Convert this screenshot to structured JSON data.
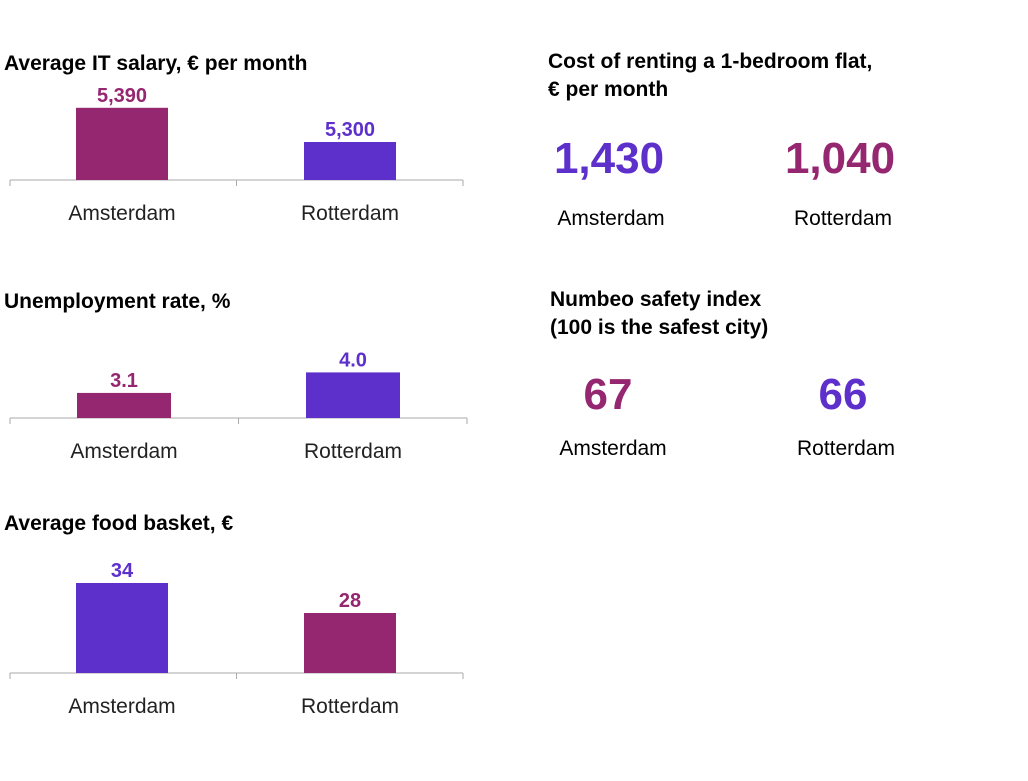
{
  "colors": {
    "magenta": "#952670",
    "violet": "#5d2fcb",
    "axis": "#aaaaaa"
  },
  "chart_data": [
    {
      "type": "bar",
      "title": "Average IT salary, € per month",
      "categories": [
        "Amsterdam",
        "Rotterdam"
      ],
      "values": [
        5390,
        5300
      ],
      "value_labels": [
        "5,390",
        "5,300"
      ],
      "bar_colors": [
        "#952670",
        "#5d2fcb"
      ],
      "ylim": [
        5200,
        5400
      ]
    },
    {
      "type": "bar",
      "title": "Unemployment rate, %",
      "categories": [
        "Amsterdam",
        "Rotterdam"
      ],
      "values": [
        3.1,
        4.0
      ],
      "value_labels": [
        "3.1",
        "4.0"
      ],
      "bar_colors": [
        "#952670",
        "#5d2fcb"
      ],
      "ylim": [
        2.0,
        4.5
      ]
    },
    {
      "type": "bar",
      "title": "Average food basket, €",
      "categories": [
        "Amsterdam",
        "Rotterdam"
      ],
      "values": [
        34,
        28
      ],
      "value_labels": [
        "34",
        "28"
      ],
      "bar_colors": [
        "#5d2fcb",
        "#952670"
      ],
      "ylim": [
        16,
        36
      ]
    }
  ],
  "stats": [
    {
      "title_lines": [
        "Cost of renting a 1-bedroom flat,",
        "€ per month"
      ],
      "items": [
        {
          "value": "1,430",
          "city": "Amsterdam",
          "color": "#5d2fcb"
        },
        {
          "value": "1,040",
          "city": "Rotterdam",
          "color": "#952670"
        }
      ]
    },
    {
      "title_lines": [
        "Numbeo safety index",
        "(100 is the safest city)"
      ],
      "items": [
        {
          "value": "67",
          "city": "Amsterdam",
          "color": "#952670"
        },
        {
          "value": "66",
          "city": "Rotterdam",
          "color": "#5d2fcb"
        }
      ]
    }
  ]
}
